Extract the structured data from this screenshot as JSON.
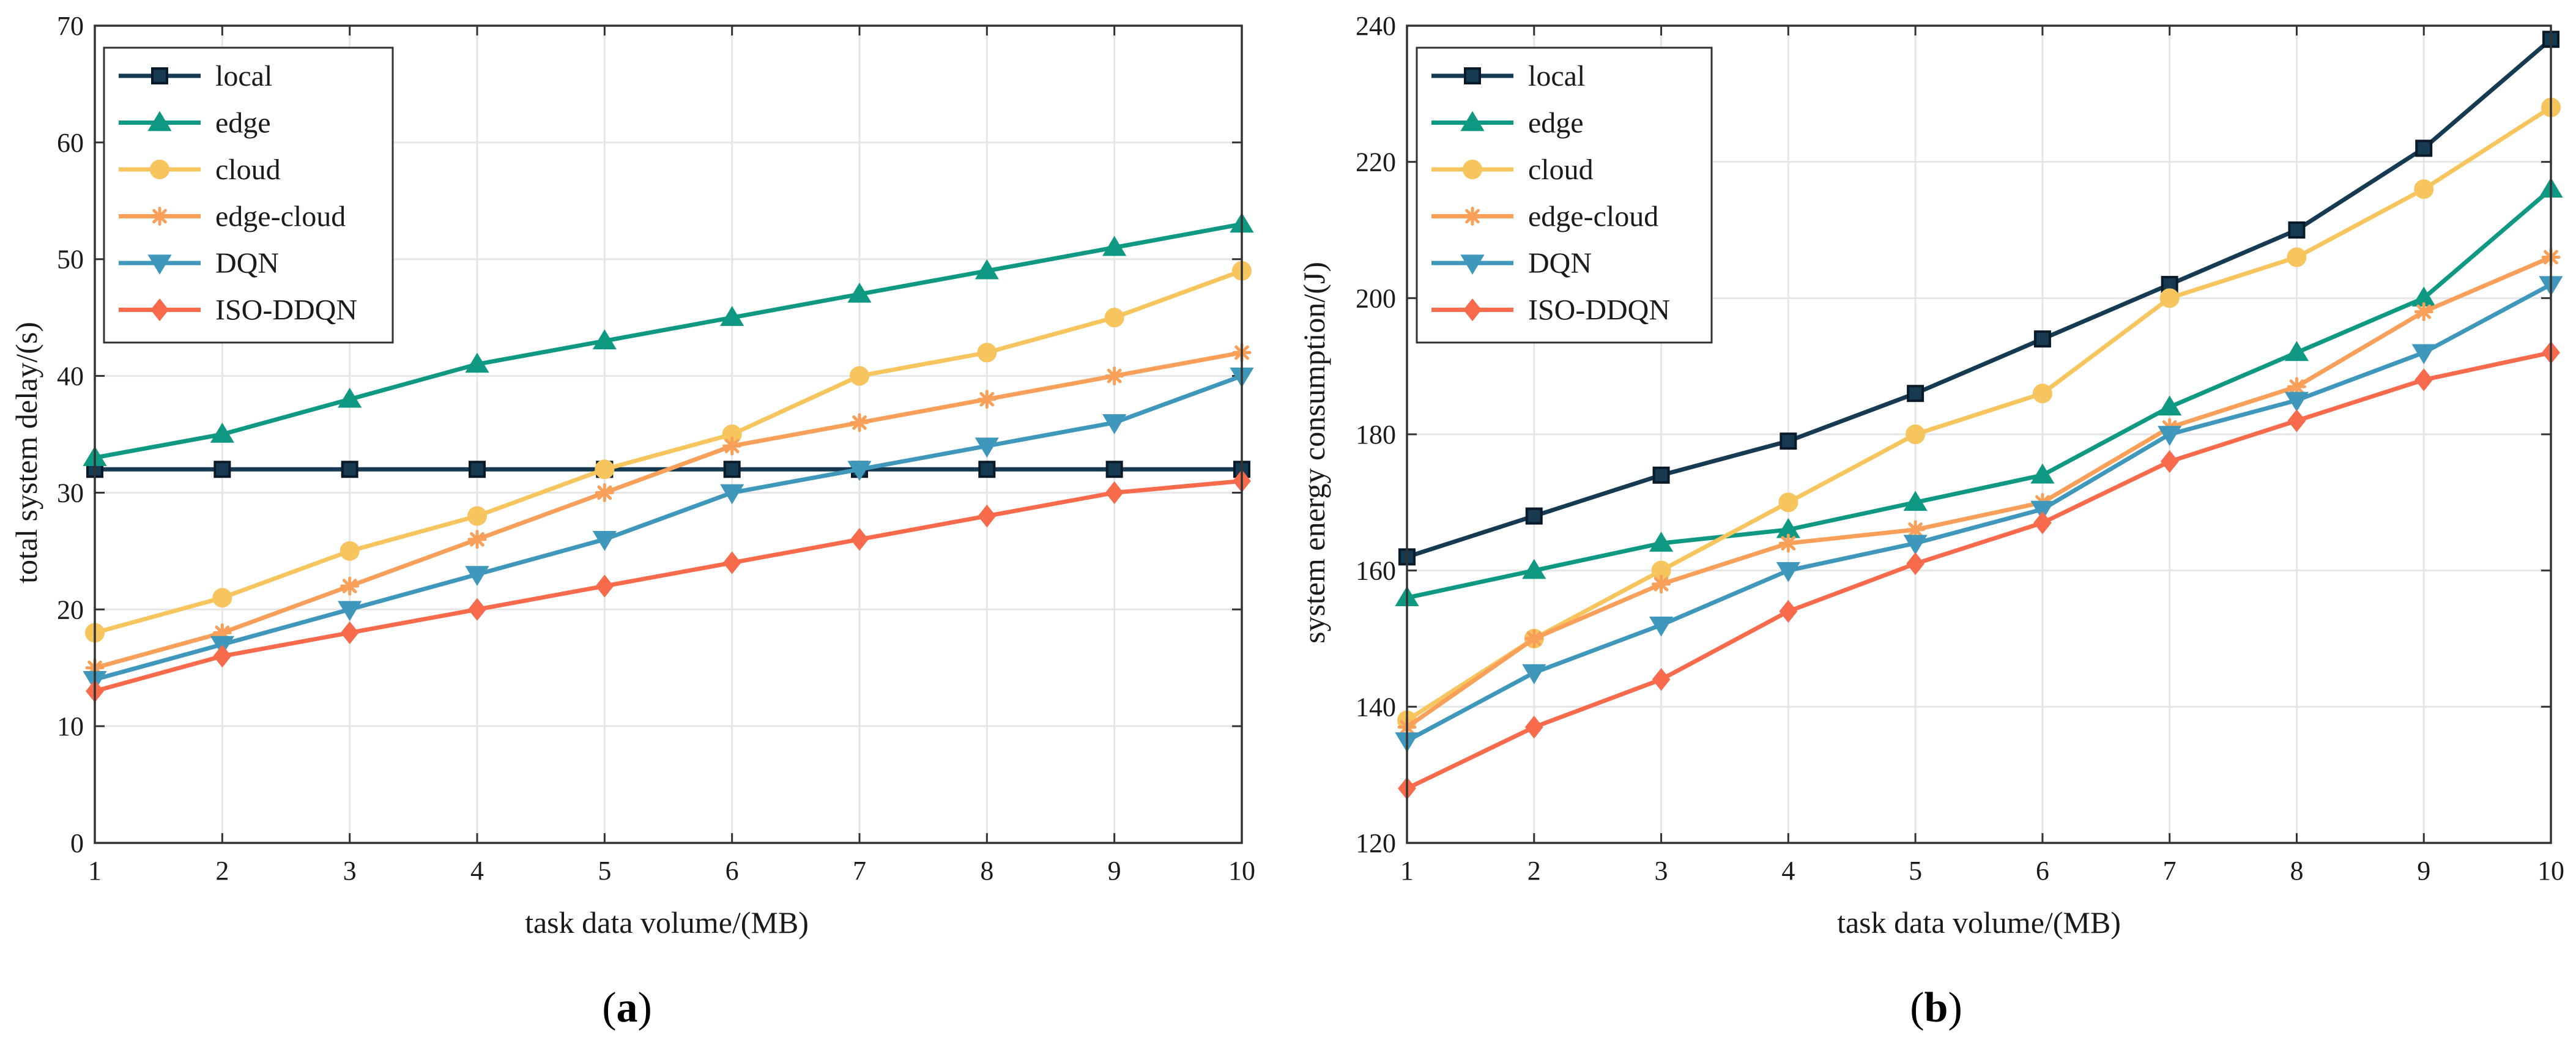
{
  "series_styles": [
    {
      "name": "local",
      "color": "#163a52",
      "marker": "square"
    },
    {
      "name": "edge",
      "color": "#109982",
      "marker": "triangle-up"
    },
    {
      "name": "cloud",
      "color": "#f7c55d",
      "marker": "circle"
    },
    {
      "name": "edge-cloud",
      "color": "#f8a05a",
      "marker": "asterisk"
    },
    {
      "name": "DQN",
      "color": "#3f98bb",
      "marker": "triangle-down"
    },
    {
      "name": "ISO-DDQN",
      "color": "#f76a4b",
      "marker": "diamond"
    }
  ],
  "chart_data": [
    {
      "type": "line",
      "caption": {
        "open": "(",
        "letter": "a",
        "close": ")"
      },
      "title": "",
      "xlabel": "task data volume/(MB)",
      "ylabel": "total system delay/(s)",
      "x": [
        1,
        2,
        3,
        4,
        5,
        6,
        7,
        8,
        9,
        10
      ],
      "xlim": [
        1,
        10
      ],
      "ylim": [
        0,
        70
      ],
      "xticks": [
        1,
        2,
        3,
        4,
        5,
        6,
        7,
        8,
        9,
        10
      ],
      "yticks": [
        0,
        10,
        20,
        30,
        40,
        50,
        60,
        70
      ],
      "grid": true,
      "legend": "top-left",
      "series": [
        {
          "name": "local",
          "values": [
            32,
            32,
            32,
            32,
            32,
            32,
            32,
            32,
            32,
            32
          ]
        },
        {
          "name": "edge",
          "values": [
            33,
            35,
            38,
            41,
            43,
            45,
            47,
            49,
            51,
            53
          ]
        },
        {
          "name": "cloud",
          "values": [
            18,
            21,
            25,
            28,
            32,
            35,
            40,
            42,
            45,
            49
          ]
        },
        {
          "name": "edge-cloud",
          "values": [
            15,
            18,
            22,
            26,
            30,
            34,
            36,
            38,
            40,
            42
          ]
        },
        {
          "name": "DQN",
          "values": [
            14,
            17,
            20,
            23,
            26,
            30,
            32,
            34,
            36,
            40
          ]
        },
        {
          "name": "ISO-DDQN",
          "values": [
            13,
            16,
            18,
            20,
            22,
            24,
            26,
            28,
            30,
            31
          ]
        }
      ]
    },
    {
      "type": "line",
      "caption": {
        "open": "(",
        "letter": "b",
        "close": ")"
      },
      "title": "",
      "xlabel": "task data volume/(MB)",
      "ylabel": "system energy consumption/(J)",
      "x": [
        1,
        2,
        3,
        4,
        5,
        6,
        7,
        8,
        9,
        10
      ],
      "xlim": [
        1,
        10
      ],
      "ylim": [
        120,
        240
      ],
      "xticks": [
        1,
        2,
        3,
        4,
        5,
        6,
        7,
        8,
        9,
        10
      ],
      "yticks": [
        120,
        140,
        160,
        180,
        200,
        220,
        240
      ],
      "grid": true,
      "legend": "top-left",
      "series": [
        {
          "name": "local",
          "values": [
            162,
            168,
            174,
            179,
            186,
            194,
            202,
            210,
            222,
            238
          ]
        },
        {
          "name": "edge",
          "values": [
            156,
            160,
            164,
            166,
            170,
            174,
            184,
            192,
            200,
            216
          ]
        },
        {
          "name": "cloud",
          "values": [
            138,
            150,
            160,
            170,
            180,
            186,
            200,
            206,
            216,
            228
          ]
        },
        {
          "name": "edge-cloud",
          "values": [
            137,
            150,
            158,
            164,
            166,
            170,
            181,
            187,
            198,
            206
          ]
        },
        {
          "name": "DQN",
          "values": [
            135,
            145,
            152,
            160,
            164,
            169,
            180,
            185,
            192,
            202
          ]
        },
        {
          "name": "ISO-DDQN",
          "values": [
            128,
            137,
            144,
            154,
            161,
            167,
            176,
            182,
            188,
            192
          ]
        }
      ]
    }
  ]
}
